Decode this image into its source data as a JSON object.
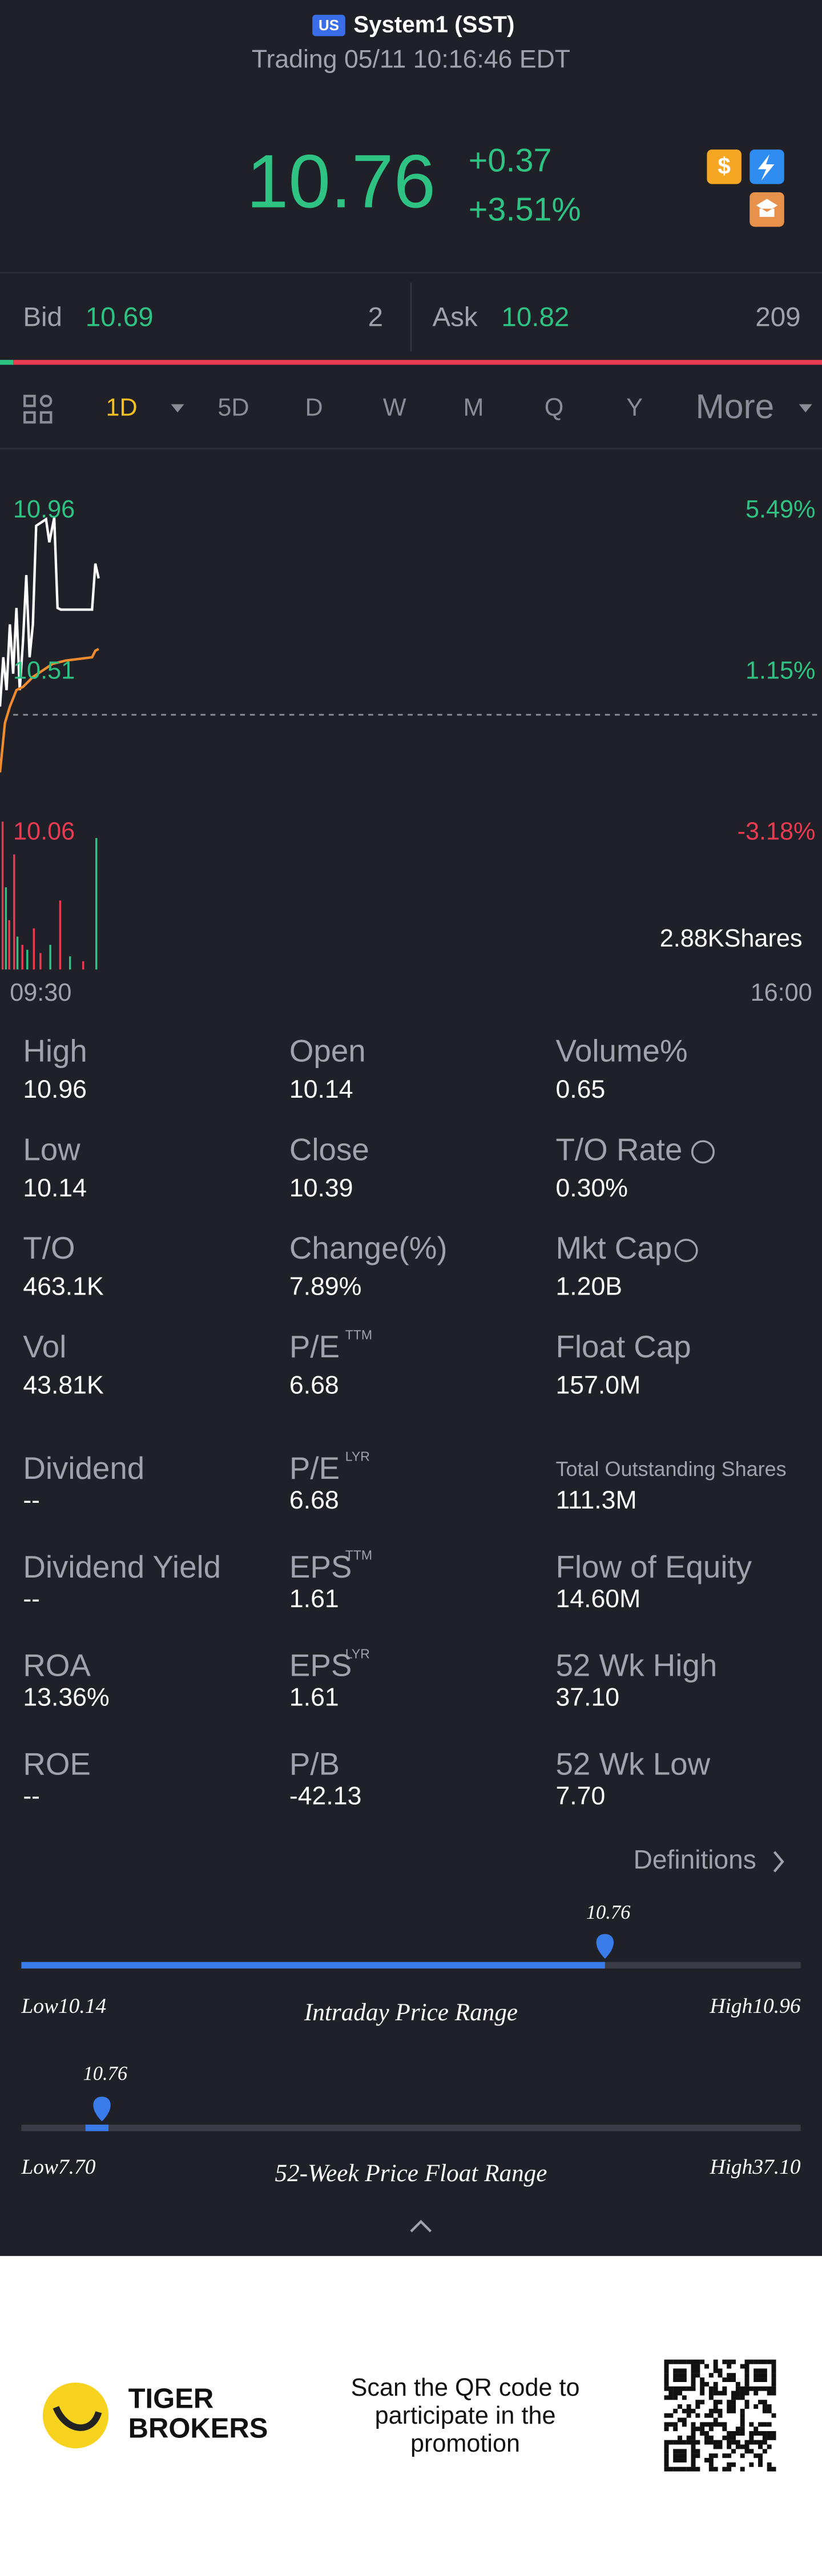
{
  "header": {
    "market_badge": "US",
    "name": "System1 (SST)",
    "status": "Trading 05/11 10:16:46 EDT"
  },
  "quote": {
    "price": "10.76",
    "change": "+0.37",
    "change_pct": "+3.51%"
  },
  "bid": {
    "label": "Bid",
    "price": "10.69",
    "size": "2"
  },
  "ask": {
    "label": "Ask",
    "price": "10.82",
    "size": "209"
  },
  "tabs": [
    "1D",
    "5D",
    "D",
    "W",
    "M",
    "Q",
    "Y",
    "More"
  ],
  "chart": {
    "left_labels": [
      "10.96",
      "10.51",
      "10.06"
    ],
    "right_labels": [
      "5.49%",
      "1.15%",
      "-3.18%"
    ],
    "volume_label": "2.88KShares",
    "x_start": "09:30",
    "x_end": "16:00"
  },
  "stats": [
    [
      {
        "label": "High",
        "value": "10.96"
      },
      {
        "label": "Open",
        "value": "10.14"
      },
      {
        "label": "Volume%",
        "value": "0.65"
      }
    ],
    [
      {
        "label": "Low",
        "value": "10.14"
      },
      {
        "label": "Close",
        "value": "10.39"
      },
      {
        "label": "T/O Rate",
        "value": "0.30%"
      }
    ],
    [
      {
        "label": "T/O",
        "value": "463.1K"
      },
      {
        "label": "Change(%)",
        "value": "7.89%"
      },
      {
        "label": "Mkt Cap",
        "value": "1.20B"
      }
    ],
    [
      {
        "label": "Vol",
        "value": "43.81K"
      },
      {
        "label": "P/E",
        "sup": "TTM",
        "value": "6.68"
      },
      {
        "label": "Float Cap",
        "value": "157.0M"
      }
    ],
    [
      {
        "label": "Dividend",
        "value": "--"
      },
      {
        "label": "P/E",
        "sup": "LYR",
        "value": "6.68"
      },
      {
        "label": "Total Outstanding Shares",
        "value": "111.3M"
      }
    ],
    [
      {
        "label": "Dividend Yield",
        "value": "--"
      },
      {
        "label": "EPS",
        "sup": "TTM",
        "value": "1.61"
      },
      {
        "label": "Flow of Equity",
        "value": "14.60M"
      }
    ],
    [
      {
        "label": "ROA",
        "value": "13.36%"
      },
      {
        "label": "EPS",
        "sup": "LYR",
        "value": "1.61"
      },
      {
        "label": "52 Wk High",
        "value": "37.10"
      }
    ],
    [
      {
        "label": "ROE",
        "value": "--"
      },
      {
        "label": "P/B",
        "value": "-42.13"
      },
      {
        "label": "52 Wk Low",
        "value": "7.70"
      }
    ]
  ],
  "definitions": "Definitions",
  "intraday_range": {
    "current": "10.76",
    "low": "Low10.14",
    "title": "Intraday Price Range",
    "high": "High10.96"
  },
  "week52_range": {
    "current": "10.76",
    "low": "Low7.70",
    "title": "52-Week Price Float Range",
    "high": "High37.10"
  },
  "footer": {
    "brand_line1": "TIGER",
    "brand_line2": "BROKERS",
    "promo": [
      "Scan the QR code to",
      "participate in the",
      "promotion"
    ]
  }
}
